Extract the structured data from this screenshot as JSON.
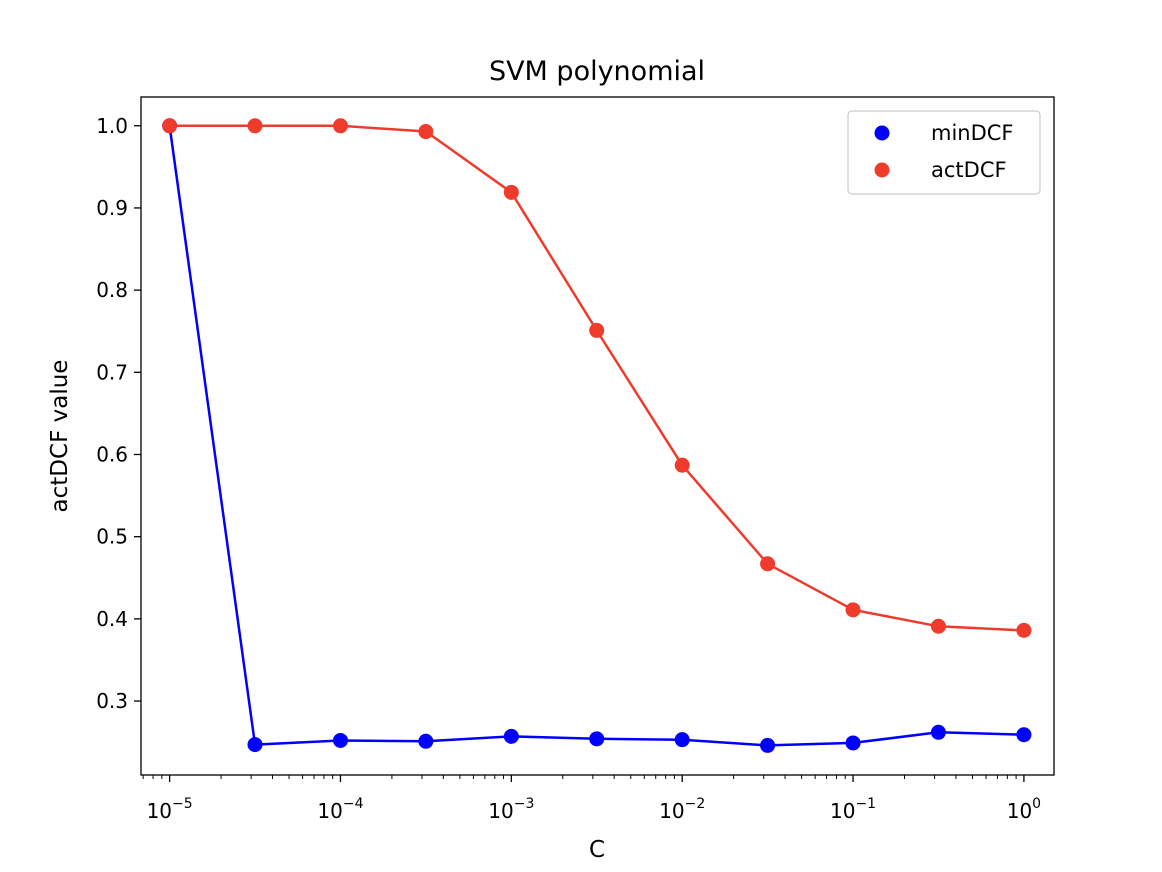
{
  "chart_data": {
    "type": "line",
    "title": "SVM polynomial",
    "xlabel": "C",
    "ylabel": "actDCF value",
    "x_scale": "log",
    "x_tick_labels": [
      {
        "base": "10",
        "exp": "−5"
      },
      {
        "base": "10",
        "exp": "−4"
      },
      {
        "base": "10",
        "exp": "−3"
      },
      {
        "base": "10",
        "exp": "−2"
      },
      {
        "base": "10",
        "exp": "−1"
      },
      {
        "base": "10",
        "exp": "0"
      }
    ],
    "y_ticks": [
      "0.3",
      "0.4",
      "0.5",
      "0.6",
      "0.7",
      "0.8",
      "0.9",
      "1.0"
    ],
    "xlim": [
      6.8e-06,
      1.5
    ],
    "ylim": [
      0.21,
      1.035
    ],
    "grid": false,
    "legend_position": "top-right",
    "x": [
      1e-05,
      3.16e-05,
      0.0001,
      0.000316,
      0.001,
      0.00316,
      0.01,
      0.0316,
      0.1,
      0.316,
      1
    ],
    "series": [
      {
        "name": "minDCF",
        "color": "#0000ff",
        "values": [
          1.0,
          0.247,
          0.252,
          0.251,
          0.257,
          0.254,
          0.253,
          0.246,
          0.249,
          0.262,
          0.259
        ]
      },
      {
        "name": "actDCF",
        "color": "#ef3b2c",
        "values": [
          1.0,
          1.0,
          1.0,
          0.993,
          0.919,
          0.751,
          0.587,
          0.467,
          0.411,
          0.391,
          0.386
        ]
      }
    ]
  }
}
